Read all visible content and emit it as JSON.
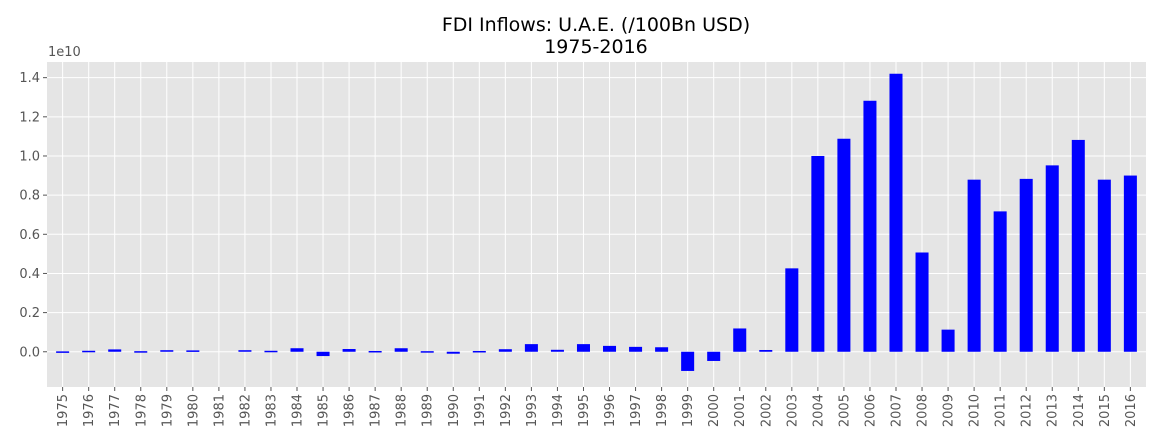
{
  "chart_data": {
    "type": "bar",
    "title": "FDI Inflows: U.A.E. (/100Bn USD)",
    "subtitle": "1975-2016",
    "xlabel": "",
    "ylabel": "",
    "y_offset_label": "1e10",
    "y_tick_labels": [
      "0.0",
      "0.2",
      "0.4",
      "0.6",
      "0.8",
      "1.0",
      "1.2",
      "1.4"
    ],
    "ylim": [
      -0.18,
      1.48
    ],
    "grid": true,
    "legend": "none",
    "bar_color": "#0000ff",
    "background_color": "#e5e5e5",
    "categories": [
      "1975",
      "1976",
      "1977",
      "1978",
      "1979",
      "1980",
      "1981",
      "1982",
      "1983",
      "1984",
      "1985",
      "1986",
      "1987",
      "1988",
      "1989",
      "1990",
      "1991",
      "1992",
      "1993",
      "1994",
      "1995",
      "1996",
      "1997",
      "1998",
      "1999",
      "2000",
      "2001",
      "2002",
      "2003",
      "2004",
      "2005",
      "2006",
      "2007",
      "2008",
      "2009",
      "2010",
      "2011",
      "2012",
      "2013",
      "2014",
      "2015",
      "2016"
    ],
    "values": [
      0.002,
      0.005,
      0.012,
      0.003,
      0.008,
      0.007,
      0.0,
      0.008,
      0.005,
      0.018,
      -0.022,
      0.014,
      0.004,
      0.018,
      0.003,
      -0.01,
      0.004,
      0.013,
      0.039,
      0.01,
      0.039,
      0.03,
      0.025,
      0.023,
      -0.098,
      -0.047,
      0.119,
      0.009,
      0.426,
      1.0,
      1.088,
      1.282,
      1.42,
      0.507,
      0.113,
      0.879,
      0.717,
      0.883,
      0.952,
      1.082,
      0.879,
      0.9
    ]
  }
}
